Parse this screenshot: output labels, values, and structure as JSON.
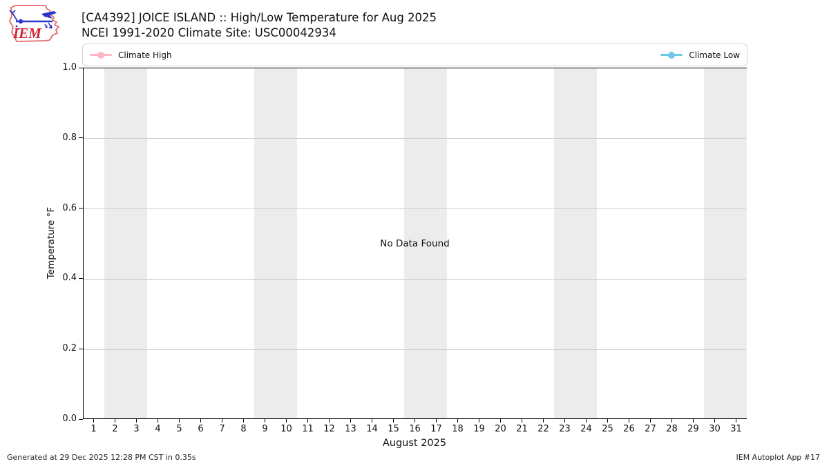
{
  "header": {
    "title_line1": "[CA4392] JOICE ISLAND :: High/Low Temperature for Aug 2025",
    "title_line2": "NCEI 1991-2020 Climate Site: USC00042934",
    "logo_text": "IEM"
  },
  "chart_data": {
    "type": "line",
    "title": "[CA4392] JOICE ISLAND :: High/Low Temperature for Aug 2025",
    "subtitle": "NCEI 1991-2020 Climate Site: USC00042934",
    "xlabel": "August 2025",
    "ylabel": "Temperature °F",
    "ylim": [
      0.0,
      1.0
    ],
    "xlim": [
      0.5,
      31.5
    ],
    "grid": true,
    "legend_position": "top",
    "no_data_text": "No Data Found",
    "x_ticks": [
      1,
      2,
      3,
      4,
      5,
      6,
      7,
      8,
      9,
      10,
      11,
      12,
      13,
      14,
      15,
      16,
      17,
      18,
      19,
      20,
      21,
      22,
      23,
      24,
      25,
      26,
      27,
      28,
      29,
      30,
      31
    ],
    "y_ticks": [
      {
        "label": "0.0",
        "value": 0.0
      },
      {
        "label": "0.2",
        "value": 0.2
      },
      {
        "label": "0.4",
        "value": 0.4
      },
      {
        "label": "0.6",
        "value": 0.6
      },
      {
        "label": "0.8",
        "value": 0.8
      },
      {
        "label": "1.0",
        "value": 1.0
      }
    ],
    "series": [
      {
        "name": "Climate High",
        "color": "#ffb6c1",
        "x": [],
        "values": []
      },
      {
        "name": "Climate Low",
        "color": "#6ec6e8",
        "x": [],
        "values": []
      }
    ],
    "weekend_bands": [
      [
        1.5,
        3.5
      ],
      [
        8.5,
        10.5
      ],
      [
        15.5,
        17.5
      ],
      [
        22.5,
        24.5
      ],
      [
        29.5,
        31.5
      ]
    ],
    "band_color": "#ececec"
  },
  "footer": {
    "generated": "Generated at 29 Dec 2025 12:28 PM CST in 0.35s",
    "app": "IEM Autoplot App #17"
  },
  "colors": {
    "high": "#ffb6c1",
    "low": "#6ec6e8",
    "band": "#ececec",
    "gridline": "#cccccc",
    "logo_red": "#d03040",
    "logo_blue": "#2b35c9"
  }
}
